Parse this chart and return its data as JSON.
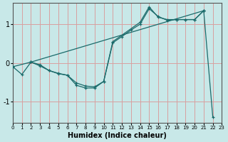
{
  "xlabel": "Humidex (Indice chaleur)",
  "bg_color": "#c8e8e8",
  "line_color": "#1a6a6a",
  "grid_color": "#d8a0a0",
  "xlim": [
    0,
    23
  ],
  "ylim": [
    -1.55,
    1.55
  ],
  "xticks": [
    0,
    1,
    2,
    3,
    4,
    5,
    6,
    7,
    8,
    9,
    10,
    11,
    12,
    13,
    14,
    15,
    16,
    17,
    18,
    19,
    20,
    21,
    22,
    23
  ],
  "yticks": [
    -1,
    0,
    1
  ],
  "line1_x": [
    0,
    1,
    2,
    3,
    4,
    5,
    6,
    7,
    8,
    9,
    10,
    11,
    12,
    13,
    14,
    15,
    16,
    17,
    18,
    19,
    20,
    21
  ],
  "line1_y": [
    -0.1,
    -0.3,
    0.02,
    -0.05,
    -0.2,
    -0.28,
    -0.32,
    -0.58,
    -0.65,
    -0.65,
    -0.48,
    0.52,
    0.68,
    0.85,
    1.0,
    1.4,
    1.2,
    1.1,
    1.12,
    1.12,
    1.12,
    1.35
  ],
  "line2_x": [
    2,
    3,
    4,
    5,
    6,
    7,
    8,
    9,
    10,
    11,
    14,
    15,
    16,
    17,
    18,
    19,
    20,
    21
  ],
  "line2_y": [
    0.02,
    -0.08,
    -0.2,
    -0.27,
    -0.32,
    -0.52,
    -0.6,
    -0.62,
    -0.48,
    0.55,
    1.05,
    1.45,
    1.18,
    1.12,
    1.12,
    1.12,
    1.12,
    1.35
  ],
  "line3_x": [
    0,
    2,
    21,
    22
  ],
  "line3_y": [
    -0.1,
    0.02,
    1.35,
    -1.4
  ]
}
